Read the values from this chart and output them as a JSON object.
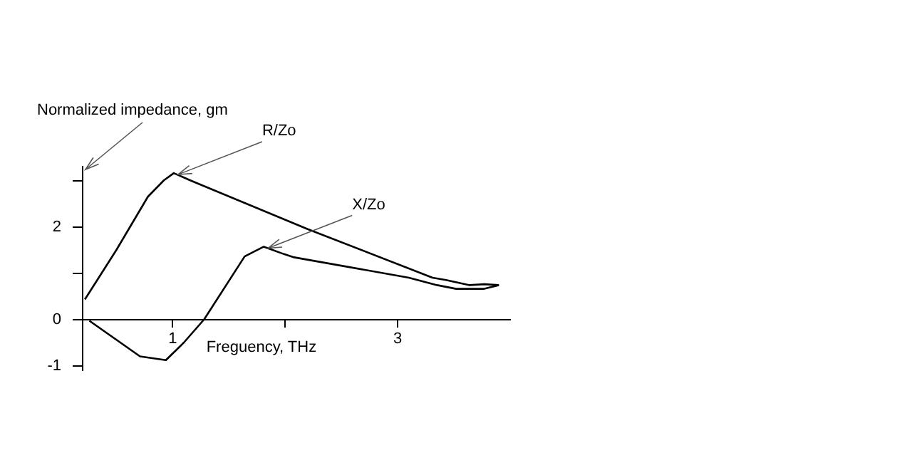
{
  "chart_data": {
    "type": "line",
    "xlabel": "Freguency, THz",
    "ylabel": "Normalized impedance, gm",
    "xlim": [
      0.2,
      4
    ],
    "xticks": [
      1,
      {
        "value": 2,
        "label": null
      },
      3
    ],
    "ylim": [
      -1.1,
      3.3
    ],
    "yticks": [
      -1,
      0,
      {
        "value": 1,
        "label": null
      },
      2,
      {
        "value": 3,
        "label": null
      }
    ],
    "grid": false,
    "legend": false,
    "marker": "none",
    "line_style": "solid",
    "series": [
      {
        "name": "R/Zo",
        "color": "#000000",
        "x": [
          0.22,
          0.5,
          0.78,
          0.92,
          1.01,
          1.16,
          2.2,
          3.31,
          3.43,
          3.64,
          3.77,
          3.9
        ],
        "values": [
          0.43,
          1.5,
          2.65,
          3.0,
          3.16,
          3.0,
          1.95,
          0.9,
          0.85,
          0.74,
          0.76,
          0.74
        ]
      },
      {
        "name": "X/Zo",
        "color": "#000000",
        "x": [
          0.26,
          0.71,
          0.94,
          1.1,
          1.28,
          1.64,
          1.81,
          1.99,
          2.08,
          3.1,
          3.35,
          3.52,
          3.77,
          3.9
        ],
        "values": [
          -0.03,
          -0.8,
          -0.88,
          -0.5,
          0,
          1.36,
          1.57,
          1.41,
          1.34,
          0.9,
          0.74,
          0.66,
          0.66,
          0.74
        ]
      }
    ]
  }
}
